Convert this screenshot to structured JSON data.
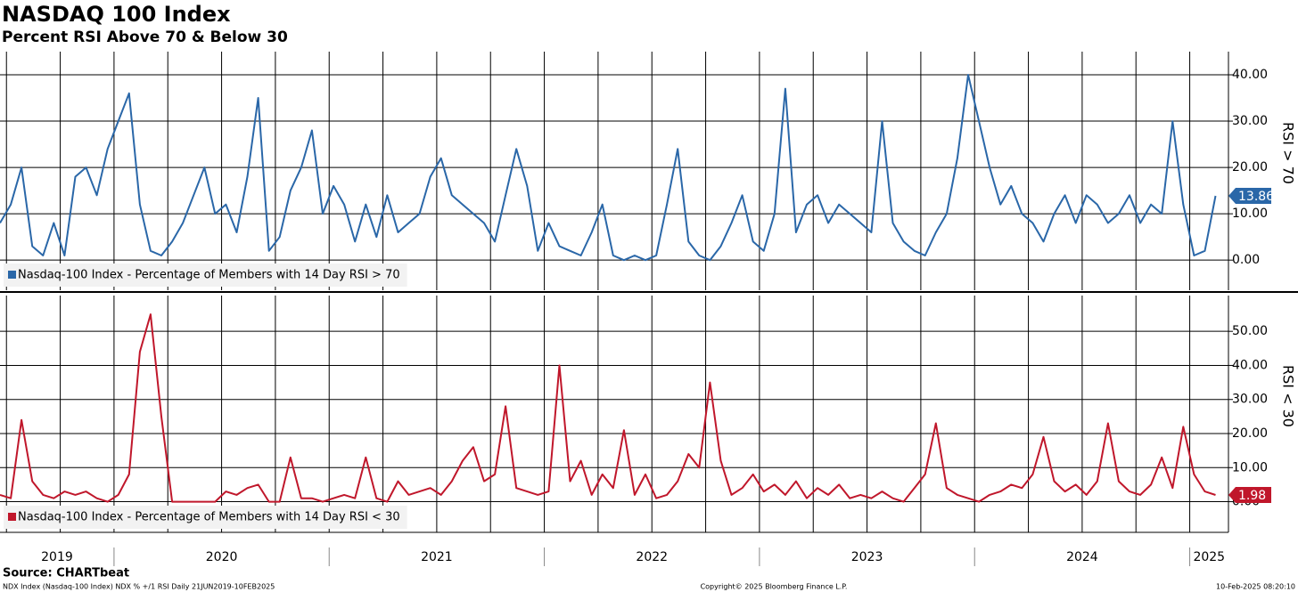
{
  "title": "NASDAQ 100 Index",
  "subtitle": "Percent RSI Above 70 & Below 30",
  "source": "Source: CHARTbeat",
  "footer_left": "NDX Index (Nasdaq-100 Index) NDX % +/1 RSI  Daily 21JUN2019-10FEB2025",
  "footer_center": "Copyright© 2025 Bloomberg Finance L.P.",
  "footer_right": "10-Feb-2025 08:20:10",
  "x_axis": {
    "xlim": [
      2019.47,
      2025.18
    ],
    "xticks": [
      2019.5,
      2019.75,
      2020,
      2020.25,
      2020.5,
      2020.75,
      2021,
      2021.25,
      2021.5,
      2021.75,
      2022,
      2022.25,
      2022.5,
      2022.75,
      2023,
      2023.25,
      2023.5,
      2023.75,
      2024,
      2024.25,
      2024.5,
      2024.75,
      2025
    ],
    "year_labels": [
      "2019",
      "2020",
      "2021",
      "2022",
      "2023",
      "2024",
      "2025"
    ],
    "x": [
      2019.47,
      2019.52,
      2019.57,
      2019.62,
      2019.67,
      2019.72,
      2019.77,
      2019.82,
      2019.87,
      2019.92,
      2019.97,
      2020.02,
      2020.07,
      2020.12,
      2020.17,
      2020.22,
      2020.27,
      2020.32,
      2020.37,
      2020.42,
      2020.47,
      2020.52,
      2020.57,
      2020.62,
      2020.67,
      2020.72,
      2020.77,
      2020.82,
      2020.87,
      2020.92,
      2020.97,
      2021.02,
      2021.07,
      2021.12,
      2021.17,
      2021.22,
      2021.27,
      2021.32,
      2021.37,
      2021.42,
      2021.47,
      2021.52,
      2021.57,
      2021.62,
      2021.67,
      2021.72,
      2021.77,
      2021.82,
      2021.87,
      2021.92,
      2021.97,
      2022.02,
      2022.07,
      2022.12,
      2022.17,
      2022.22,
      2022.27,
      2022.32,
      2022.37,
      2022.42,
      2022.47,
      2022.52,
      2022.57,
      2022.62,
      2022.67,
      2022.72,
      2022.77,
      2022.82,
      2022.87,
      2022.92,
      2022.97,
      2023.02,
      2023.07,
      2023.12,
      2023.17,
      2023.22,
      2023.27,
      2023.32,
      2023.37,
      2023.42,
      2023.47,
      2023.52,
      2023.57,
      2023.62,
      2023.67,
      2023.72,
      2023.77,
      2023.82,
      2023.87,
      2023.92,
      2023.97,
      2024.02,
      2024.07,
      2024.12,
      2024.17,
      2024.22,
      2024.27,
      2024.32,
      2024.37,
      2024.42,
      2024.47,
      2024.52,
      2024.57,
      2024.62,
      2024.67,
      2024.72,
      2024.77,
      2024.82,
      2024.87,
      2024.92,
      2024.97,
      2025.02,
      2025.07,
      2025.12
    ]
  },
  "chart_data": [
    {
      "type": "line",
      "axis_label": "RSI > 70",
      "ylim": [
        -6.5,
        45
      ],
      "yticks": [
        {
          "value": 0,
          "label": "0.00"
        },
        {
          "value": 10,
          "label": "10.00"
        },
        {
          "value": 20,
          "label": "20.00"
        },
        {
          "value": 30,
          "label": "30.00"
        },
        {
          "value": 40,
          "label": "40.00"
        }
      ],
      "grid": true,
      "legend": "lower left",
      "series": [
        {
          "name": "Nasdaq-100 Index - Percentage of Members with 14 Day RSI > 70",
          "color": "#2a67a8",
          "values": [
            8,
            12,
            20,
            3,
            1,
            8,
            1,
            18,
            20,
            14,
            24,
            30,
            36,
            12,
            2,
            1,
            4,
            8,
            14,
            20,
            10,
            12,
            6,
            18,
            35,
            2,
            5,
            15,
            20,
            28,
            10,
            16,
            12,
            4,
            12,
            5,
            14,
            6,
            8,
            10,
            18,
            22,
            14,
            12,
            10,
            8,
            4,
            14,
            24,
            16,
            2,
            8,
            3,
            2,
            1,
            6,
            12,
            1,
            0,
            1,
            0,
            1,
            12,
            24,
            4,
            1,
            0,
            3,
            8,
            14,
            4,
            2,
            10,
            37,
            6,
            12,
            14,
            8,
            12,
            10,
            8,
            6,
            30,
            8,
            4,
            2,
            1,
            6,
            10,
            22,
            40,
            30,
            20,
            12,
            16,
            10,
            8,
            4,
            10,
            14,
            8,
            14,
            12,
            8,
            10,
            14,
            8,
            12,
            10,
            30,
            12,
            1,
            2,
            13.86
          ]
        }
      ]
    },
    {
      "type": "line",
      "axis_label": "RSI < 30",
      "ylim": [
        -9,
        60.5
      ],
      "yticks": [
        {
          "value": 0,
          "label": "0.00"
        },
        {
          "value": 10,
          "label": "10.00"
        },
        {
          "value": 20,
          "label": "20.00"
        },
        {
          "value": 30,
          "label": "30.00"
        },
        {
          "value": 40,
          "label": "40.00"
        },
        {
          "value": 50,
          "label": "50.00"
        }
      ],
      "grid": true,
      "legend": "lower left",
      "series": [
        {
          "name": "Nasdaq-100 Index - Percentage of Members with 14 Day RSI < 30",
          "color": "#c0172b",
          "values": [
            2,
            1,
            24,
            6,
            2,
            1,
            3,
            2,
            3,
            1,
            0,
            2,
            8,
            44,
            55,
            25,
            0,
            0,
            0,
            0,
            0,
            3,
            2,
            4,
            5,
            0,
            0,
            13,
            1,
            1,
            0,
            1,
            2,
            1,
            13,
            1,
            0,
            6,
            2,
            3,
            4,
            2,
            6,
            12,
            16,
            6,
            8,
            28,
            4,
            3,
            2,
            3,
            40,
            6,
            12,
            2,
            8,
            4,
            21,
            2,
            8,
            1,
            2,
            6,
            14,
            10,
            35,
            12,
            2,
            4,
            8,
            3,
            5,
            2,
            6,
            1,
            4,
            2,
            5,
            1,
            2,
            1,
            3,
            1,
            0,
            4,
            8,
            23,
            4,
            2,
            1,
            0,
            2,
            3,
            5,
            4,
            8,
            19,
            6,
            3,
            5,
            2,
            6,
            23,
            6,
            3,
            2,
            5,
            13,
            4,
            22,
            8,
            3,
            1.98
          ]
        }
      ]
    }
  ]
}
